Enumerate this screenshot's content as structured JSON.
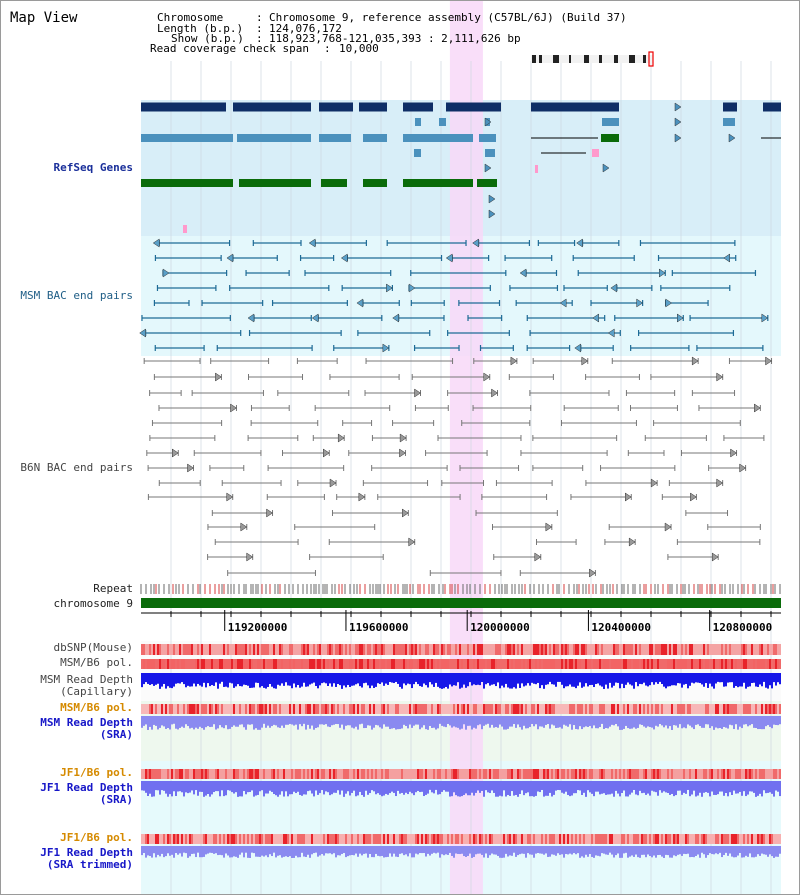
{
  "title": "Map View",
  "header": {
    "chromosome_key": "Chromosome",
    "chromosome_value": "Chromosome 9, reference assembly (C57BL/6J) (Build 37)",
    "length_key": "Length (b.p.)",
    "length_value": "124,076,172",
    "show_key": "Show (b.p.)",
    "show_value": "118,923,768-121,035,393 : 2,111,626 bp",
    "coverage_key": "Read coverage check span",
    "coverage_value": "10,000"
  },
  "view": {
    "start_bp": 118923768,
    "end_bp": 121035393
  },
  "highlight": {
    "start_bp": 119943000,
    "end_bp": 120052000
  },
  "tracks": {
    "refseq": "RefSeq Genes",
    "msm_bac": "MSM BAC end pairs",
    "b6n_bac": "B6N BAC end pairs",
    "repeat": "Repeat",
    "chromosome": "chromosome 9",
    "dbsnp": "dbSNP(Mouse)",
    "msm_b6_pol": "MSM/B6 pol.",
    "msm_depth_cap_1": "MSM Read Depth",
    "msm_depth_cap_2": "(Capillary)",
    "msm_b6_pol_2": "MSM/B6 pol.",
    "msm_depth_sra_1": "MSM Read Depth",
    "msm_depth_sra_2": "(SRA)",
    "jf1_b6_pol": "JF1/B6 pol.",
    "jf1_depth_sra_1": "JF1 Read Depth",
    "jf1_depth_sra_2": "(SRA)",
    "jf1_b6_pol_2": "JF1/B6 pol.",
    "jf1_depth_trim_1": "JF1 Read Depth",
    "jf1_depth_trim_2": "(SRA trimmed)"
  },
  "axis": {
    "ticks": [
      "119200000",
      "119600000",
      "120000000",
      "120400000",
      "120800000"
    ]
  },
  "colors": {
    "refseq_dark": "#0f2e66",
    "refseq_mid": "#4b91bd",
    "refseq_green": "#0a6b0a",
    "refseq_pink": "#ff99cc",
    "msm_line": "#1e6b96",
    "b6n_line": "#777777",
    "highlight": "#f8d8f8",
    "chromosome": "#0a6b0a",
    "depth_blue": "#1717e8",
    "depth_lav": "#8a8af0"
  }
}
